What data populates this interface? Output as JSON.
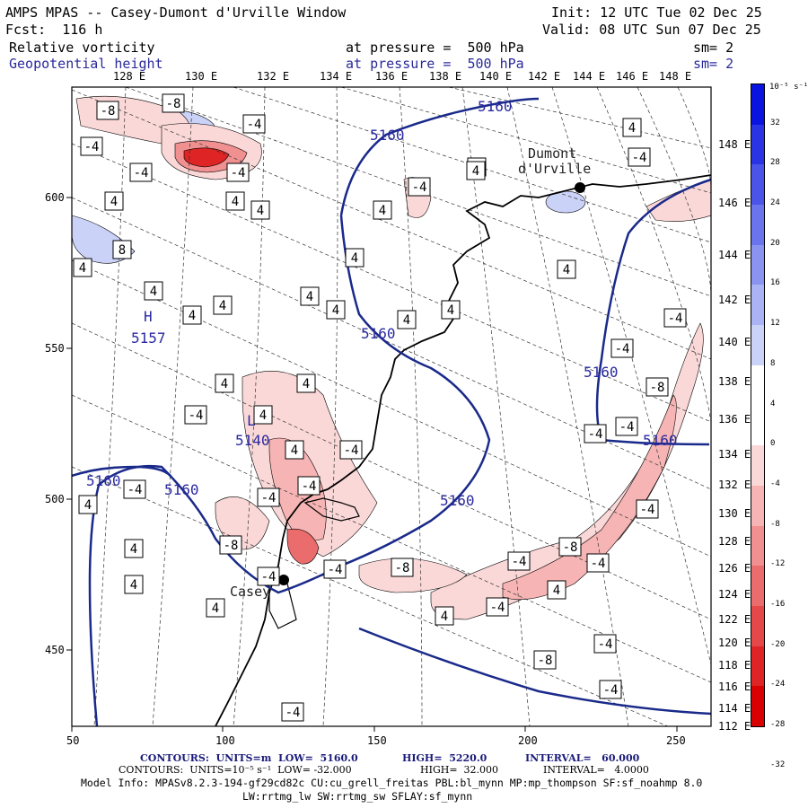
{
  "header": {
    "title": "AMPS MPAS -- Casey-Dumont d'Urville Window",
    "init": "Init: 12 UTC Tue 02 Dec 25",
    "fcst": "Fcst:  116 h",
    "valid": "Valid: 08 UTC Sun 07 Dec 25",
    "field1": "Relative vorticity",
    "field1_level": "at pressure =  500 hPa",
    "field1_sm": "sm= 2",
    "field2": "Geopotential height",
    "field2_level": "at pressure =  500 hPa",
    "field2_sm": "sm= 2"
  },
  "map": {
    "top_lon_labels": [
      "128 E",
      "130 E",
      "132 E",
      "134 E",
      "136 E",
      "138 E",
      "140 E",
      "142 E",
      "144 E",
      "146 E",
      "148 E"
    ],
    "right_lon_labels": [
      "148 E",
      "146 E",
      "144 E",
      "142 E",
      "140 E",
      "138 E",
      "136 E",
      "134 E",
      "132 E",
      "130 E",
      "128 E",
      "126 E",
      "124 E",
      "122 E",
      "120 E",
      "118 E",
      "116 E",
      "114 E",
      "112 E"
    ],
    "x_ticks": [
      "50",
      "100",
      "150",
      "200",
      "250"
    ],
    "y_ticks": [
      "600",
      "550",
      "500",
      "450"
    ],
    "stations": [
      {
        "name": "Casey",
        "marker": "black-dot"
      },
      {
        "name": "Dumont d'Urville",
        "name_line1": "Dumont",
        "name_line2": "d'Urville",
        "marker": "black-dot"
      }
    ],
    "height_labels": [
      {
        "text": "5160"
      },
      {
        "text": "5160"
      },
      {
        "text": "5160"
      },
      {
        "text": "5160"
      },
      {
        "text": "5160"
      },
      {
        "text": "5160"
      },
      {
        "text": "5160"
      },
      {
        "text": "5160"
      },
      {
        "text": "5140"
      },
      {
        "text": "5157"
      }
    ],
    "high_low_marks": [
      {
        "text": "H"
      },
      {
        "text": "L"
      }
    ],
    "vorticity_box_labels": [
      "-8",
      "-8",
      "-4",
      "-4",
      "-4",
      "-4",
      "4",
      "4",
      "4",
      "4",
      "4",
      "8",
      "4",
      "4",
      "4",
      "-4",
      "4",
      "4",
      "4",
      "4",
      "4",
      "4",
      "-4",
      "4",
      "4",
      "4",
      "4",
      "-4",
      "-4",
      "-4",
      "-8",
      "-4",
      "-4",
      "4",
      "-4",
      "-8",
      "4",
      "-4",
      "-4",
      "-8",
      "4",
      "-4",
      "-8",
      "-4",
      "-4",
      "-4",
      "-4",
      "-4",
      "-8",
      "-4",
      "-4",
      "-4",
      "4",
      "4",
      "4",
      "4",
      "4",
      "-4",
      "4"
    ]
  },
  "colorbar": {
    "unit_label": "10⁻⁵ s⁻¹",
    "tick_labels": [
      "32",
      "28",
      "24",
      "20",
      "16",
      "12",
      "8",
      "4",
      "0",
      "-4",
      "-8",
      "-12",
      "-16",
      "-20",
      "-24",
      "-28",
      "-32"
    ],
    "colors": [
      "#0a14e0",
      "#2a34e4",
      "#4a54e8",
      "#6a74ec",
      "#8a94f0",
      "#aab4f4",
      "#cad2f8",
      "#ffffff",
      "#ffffff",
      "#fbd8d8",
      "#f6b4b4",
      "#f09090",
      "#ea6c6c",
      "#e44848",
      "#de2424",
      "#d80000"
    ]
  },
  "footer": {
    "line1_label": "CONTOURS:  UNITS=m  LOW=  5160.0",
    "line1_high": "HIGH=  5220.0",
    "line1_interval": "INTERVAL=   60.000",
    "line2_label": "CONTOURS:  UNITS=10⁻⁵ s⁻¹  LOW= -32.000",
    "line2_high": "HIGH=  32.000",
    "line2_interval": "INTERVAL=   4.0000",
    "model_info": "Model Info: MPASv8.2.3-194-gf29cd82c CU:cu_grell_freitas PBL:bl_mynn MP:mp_thompson SF:sf_noahmp 8.0",
    "model_info2": "LW:rrtmg_lw SW:rrtmg_sw SFLAY:sf_mynn"
  }
}
